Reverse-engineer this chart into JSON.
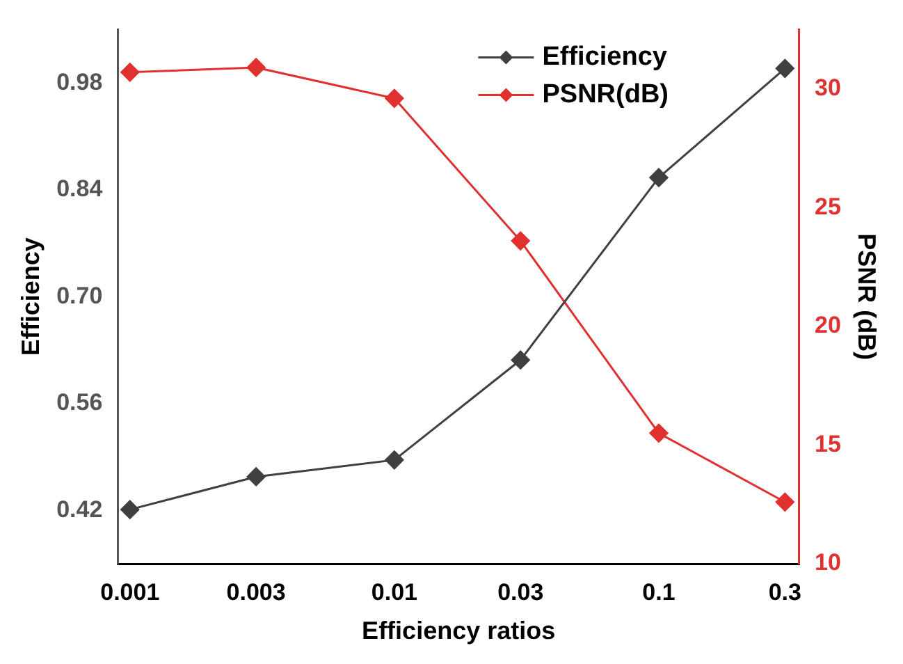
{
  "chart_data": {
    "type": "line",
    "xlabel": "Efficiency ratios",
    "ylabel": "Efficiency",
    "y2label": "PSNR (dB)",
    "x": [
      0.001,
      0.003,
      0.01,
      0.03,
      0.1,
      0.3
    ],
    "log": "x",
    "xlim": [
      0.0009,
      0.34
    ],
    "xticks": [
      0.001,
      0.003,
      0.01,
      0.03,
      0.1,
      0.3
    ],
    "ylim": [
      0.35,
      1.05
    ],
    "yticks": [
      0.42,
      {
        "value": 0.56,
        "label": "0.56"
      },
      {
        "value": 0.7,
        "label": "0.70"
      },
      0.84,
      0.98
    ],
    "y2lim": [
      10,
      32.5
    ],
    "y2ticks": [
      10,
      15,
      20,
      25,
      30
    ],
    "series": [
      {
        "name": "Efficiency",
        "color": "#404040",
        "values": [
          0.421,
          0.464,
          0.486,
          0.617,
          0.856,
          0.999
        ]
      },
      {
        "name": "PSNR(dB)",
        "color": "#e03030",
        "axis": "y2",
        "values": [
          30.7,
          30.9,
          29.6,
          23.6,
          15.5,
          12.6
        ]
      }
    ],
    "marker": "diamond",
    "line_style": "solid",
    "grid": false,
    "legend": "top right"
  }
}
